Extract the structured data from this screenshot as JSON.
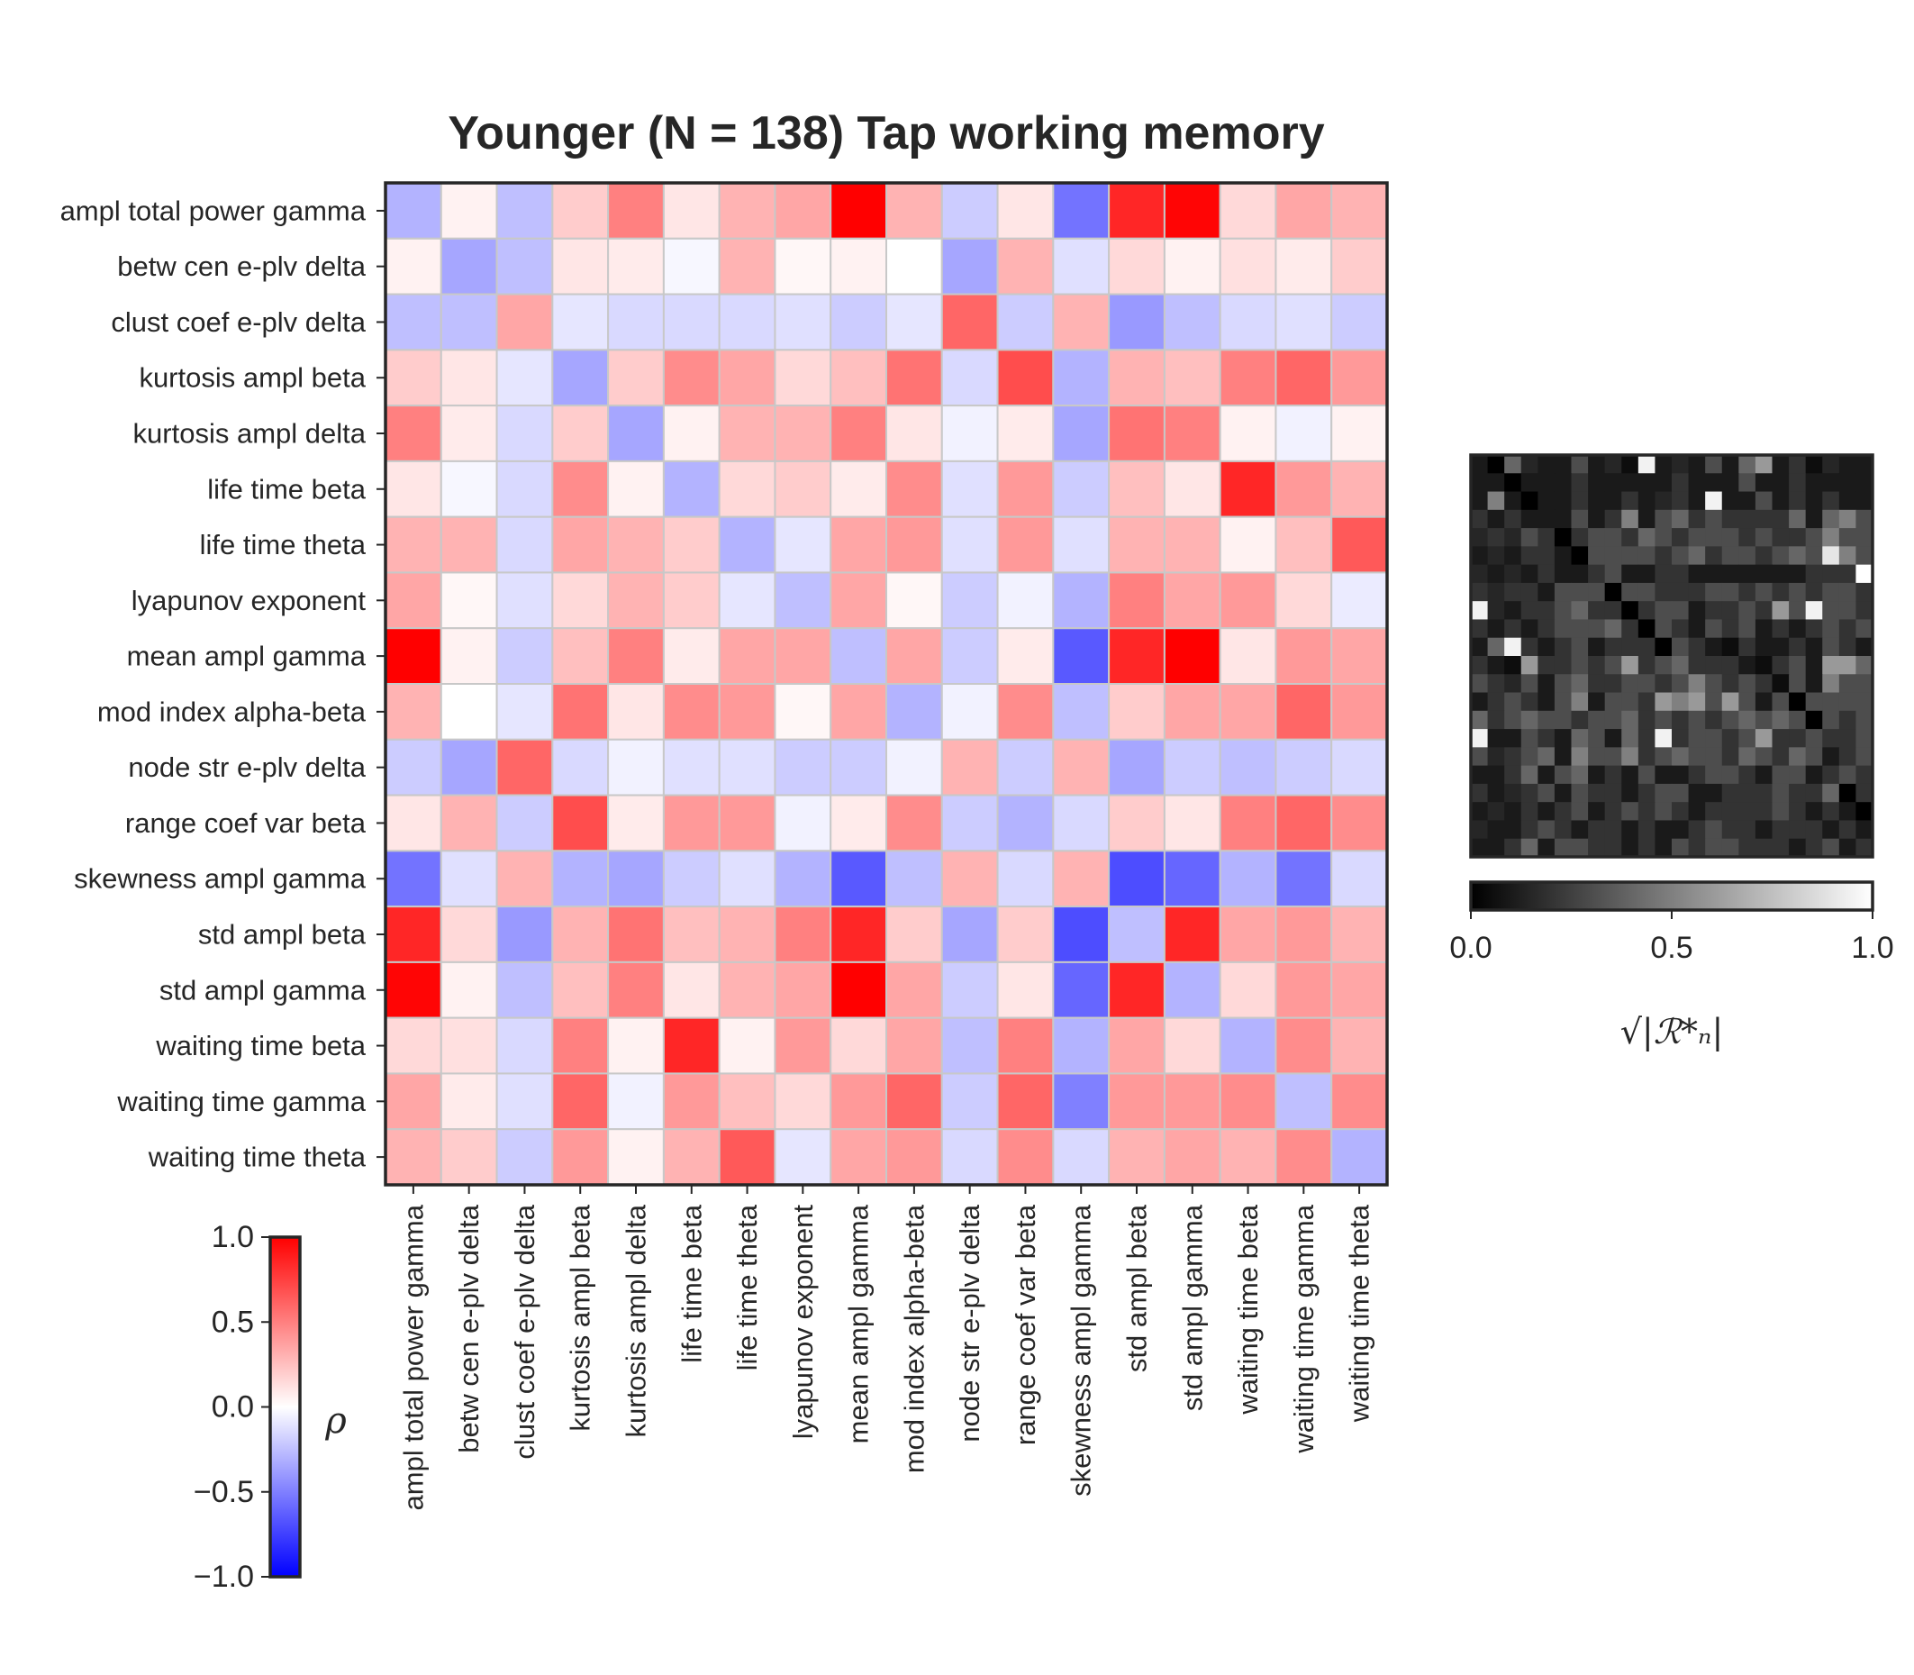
{
  "chart_data": [
    {
      "type": "heatmap",
      "title": "Younger (N = 138) Tap working memory",
      "labels": [
        "ampl total power gamma",
        "betw cen e-plv delta",
        "clust coef e-plv delta",
        "kurtosis ampl beta",
        "kurtosis ampl delta",
        "life time beta",
        "life time theta",
        "lyapunov exponent",
        "mean ampl gamma",
        "mod index alpha-beta",
        "node str e-plv delta",
        "range coef var beta",
        "skewness ampl gamma",
        "std ampl beta",
        "std ampl gamma",
        "waiting time beta",
        "waiting time gamma",
        "waiting time theta"
      ],
      "values": [
        [
          -0.3,
          0.05,
          -0.25,
          0.2,
          0.5,
          0.1,
          0.3,
          0.35,
          1.0,
          0.3,
          -0.2,
          0.1,
          -0.55,
          0.85,
          0.98,
          0.15,
          0.35,
          0.3
        ],
        [
          0.05,
          -0.35,
          -0.25,
          0.1,
          0.08,
          -0.03,
          0.3,
          0.03,
          0.05,
          0.0,
          -0.35,
          0.3,
          -0.12,
          0.15,
          0.05,
          0.12,
          0.08,
          0.2
        ],
        [
          -0.25,
          -0.25,
          0.35,
          -0.1,
          -0.15,
          -0.15,
          -0.15,
          -0.12,
          -0.2,
          -0.1,
          0.6,
          -0.2,
          0.3,
          -0.4,
          -0.25,
          -0.15,
          -0.12,
          -0.2
        ],
        [
          0.2,
          0.1,
          -0.1,
          -0.35,
          0.2,
          0.45,
          0.35,
          0.15,
          0.25,
          0.55,
          -0.15,
          0.7,
          -0.3,
          0.3,
          0.25,
          0.5,
          0.6,
          0.4
        ],
        [
          0.5,
          0.08,
          -0.15,
          0.2,
          -0.35,
          0.05,
          0.3,
          0.3,
          0.5,
          0.1,
          -0.05,
          0.08,
          -0.35,
          0.55,
          0.5,
          0.05,
          -0.05,
          0.05
        ],
        [
          0.1,
          -0.03,
          -0.15,
          0.45,
          0.05,
          -0.3,
          0.15,
          0.2,
          0.08,
          0.45,
          -0.12,
          0.4,
          -0.2,
          0.25,
          0.1,
          0.85,
          0.4,
          0.3
        ],
        [
          0.3,
          0.3,
          -0.15,
          0.35,
          0.3,
          0.2,
          -0.3,
          -0.1,
          0.35,
          0.4,
          -0.12,
          0.4,
          -0.12,
          0.3,
          0.3,
          0.05,
          0.25,
          0.65
        ],
        [
          0.35,
          0.03,
          -0.12,
          0.15,
          0.3,
          0.2,
          -0.1,
          -0.25,
          0.35,
          0.03,
          -0.2,
          -0.05,
          -0.3,
          0.5,
          0.35,
          0.4,
          0.15,
          -0.08
        ],
        [
          1.0,
          0.05,
          -0.2,
          0.25,
          0.5,
          0.08,
          0.35,
          0.35,
          -0.25,
          0.35,
          -0.2,
          0.08,
          -0.65,
          0.85,
          1.0,
          0.1,
          0.4,
          0.35
        ],
        [
          0.3,
          0.0,
          -0.1,
          0.55,
          0.1,
          0.45,
          0.4,
          0.03,
          0.35,
          -0.3,
          -0.05,
          0.45,
          -0.25,
          0.2,
          0.35,
          0.35,
          0.6,
          0.4
        ],
        [
          -0.2,
          -0.35,
          0.6,
          -0.15,
          -0.05,
          -0.12,
          -0.12,
          -0.2,
          -0.2,
          -0.05,
          0.3,
          -0.2,
          0.3,
          -0.35,
          -0.2,
          -0.25,
          -0.2,
          -0.15
        ],
        [
          0.1,
          0.3,
          -0.2,
          0.7,
          0.08,
          0.4,
          0.4,
          -0.05,
          0.08,
          0.45,
          -0.2,
          -0.3,
          -0.15,
          0.2,
          0.1,
          0.5,
          0.6,
          0.45
        ],
        [
          -0.55,
          -0.12,
          0.3,
          -0.3,
          -0.35,
          -0.2,
          -0.12,
          -0.3,
          -0.65,
          -0.25,
          0.3,
          -0.15,
          0.3,
          -0.7,
          -0.6,
          -0.3,
          -0.55,
          -0.15
        ],
        [
          0.85,
          0.15,
          -0.4,
          0.3,
          0.55,
          0.25,
          0.3,
          0.5,
          0.85,
          0.2,
          -0.35,
          0.2,
          -0.7,
          -0.25,
          0.85,
          0.35,
          0.4,
          0.3
        ],
        [
          0.98,
          0.05,
          -0.25,
          0.25,
          0.5,
          0.1,
          0.3,
          0.35,
          1.0,
          0.35,
          -0.2,
          0.1,
          -0.6,
          0.85,
          -0.3,
          0.15,
          0.4,
          0.35
        ],
        [
          0.15,
          0.12,
          -0.15,
          0.5,
          0.05,
          0.85,
          0.05,
          0.4,
          0.15,
          0.35,
          -0.25,
          0.5,
          -0.3,
          0.35,
          0.15,
          -0.3,
          0.45,
          0.3
        ],
        [
          0.35,
          0.08,
          -0.12,
          0.6,
          -0.05,
          0.4,
          0.25,
          0.15,
          0.4,
          0.6,
          -0.2,
          0.6,
          -0.5,
          0.4,
          0.4,
          0.45,
          -0.25,
          0.45
        ],
        [
          0.3,
          0.2,
          -0.2,
          0.4,
          0.05,
          0.3,
          0.65,
          -0.1,
          0.35,
          0.4,
          -0.15,
          0.45,
          -0.15,
          0.3,
          0.35,
          0.3,
          0.45,
          -0.3
        ]
      ],
      "colorbar": {
        "label": "ρ",
        "ticks": [
          "1.0",
          "0.5",
          "0.0",
          "−0.5",
          "−1.0"
        ],
        "range": [
          -1,
          1
        ],
        "colormap": "bwr"
      }
    },
    {
      "type": "heatmap",
      "values": [
        [
          0.1,
          0.0,
          0.4,
          0.15,
          0.1,
          0.1,
          0.3,
          0.1,
          0.15,
          0.05,
          0.95,
          0.1,
          0.15,
          0.1,
          0.3,
          0.1,
          0.4,
          0.6,
          0.1,
          0.2,
          0.05,
          0.15,
          0.1,
          0.1
        ],
        [
          0.1,
          0.1,
          0.0,
          0.1,
          0.1,
          0.1,
          0.2,
          0.1,
          0.1,
          0.1,
          0.1,
          0.1,
          0.2,
          0.1,
          0.1,
          0.1,
          0.3,
          0.1,
          0.1,
          0.2,
          0.1,
          0.1,
          0.1,
          0.1
        ],
        [
          0.1,
          0.5,
          0.1,
          0.0,
          0.1,
          0.1,
          0.2,
          0.1,
          0.1,
          0.2,
          0.1,
          0.15,
          0.2,
          0.1,
          0.95,
          0.1,
          0.1,
          0.3,
          0.1,
          0.2,
          0.1,
          0.2,
          0.1,
          0.1
        ],
        [
          0.2,
          0.1,
          0.2,
          0.1,
          0.1,
          0.1,
          0.3,
          0.1,
          0.2,
          0.5,
          0.1,
          0.3,
          0.4,
          0.2,
          0.3,
          0.2,
          0.2,
          0.2,
          0.2,
          0.4,
          0.1,
          0.4,
          0.5,
          0.3
        ],
        [
          0.15,
          0.2,
          0.15,
          0.3,
          0.2,
          0.0,
          0.2,
          0.3,
          0.3,
          0.2,
          0.4,
          0.3,
          0.2,
          0.3,
          0.3,
          0.3,
          0.2,
          0.3,
          0.2,
          0.2,
          0.3,
          0.5,
          0.3,
          0.3
        ],
        [
          0.1,
          0.15,
          0.1,
          0.2,
          0.2,
          0.1,
          0.0,
          0.3,
          0.3,
          0.3,
          0.3,
          0.2,
          0.3,
          0.4,
          0.2,
          0.3,
          0.3,
          0.2,
          0.3,
          0.4,
          0.3,
          0.9,
          0.5,
          0.3
        ],
        [
          0.15,
          0.1,
          0.15,
          0.1,
          0.2,
          0.1,
          0.1,
          0.2,
          0.3,
          0.1,
          0.1,
          0.2,
          0.2,
          0.1,
          0.1,
          0.1,
          0.1,
          0.1,
          0.1,
          0.1,
          0.2,
          0.2,
          0.2,
          1.0
        ],
        [
          0.2,
          0.15,
          0.2,
          0.2,
          0.1,
          0.3,
          0.3,
          0.3,
          0.0,
          0.3,
          0.3,
          0.2,
          0.2,
          0.2,
          0.3,
          0.3,
          0.2,
          0.3,
          0.2,
          0.3,
          0.2,
          0.3,
          0.3,
          0.2
        ],
        [
          0.95,
          0.15,
          0.1,
          0.2,
          0.2,
          0.3,
          0.4,
          0.2,
          0.2,
          0.0,
          0.2,
          0.3,
          0.3,
          0.1,
          0.2,
          0.2,
          0.3,
          0.2,
          0.6,
          0.3,
          0.95,
          0.3,
          0.3,
          0.2
        ],
        [
          0.2,
          0.1,
          0.2,
          0.1,
          0.2,
          0.3,
          0.3,
          0.3,
          0.4,
          0.2,
          0.0,
          0.3,
          0.2,
          0.1,
          0.3,
          0.2,
          0.3,
          0.1,
          0.2,
          0.1,
          0.2,
          0.3,
          0.2,
          0.3
        ],
        [
          0.1,
          0.4,
          0.95,
          0.2,
          0.1,
          0.2,
          0.3,
          0.1,
          0.2,
          0.2,
          0.2,
          0.0,
          0.3,
          0.2,
          0.1,
          0.05,
          0.2,
          0.1,
          0.1,
          0.2,
          0.1,
          0.3,
          0.2,
          0.1
        ],
        [
          0.2,
          0.1,
          0.05,
          0.6,
          0.2,
          0.2,
          0.3,
          0.2,
          0.3,
          0.6,
          0.2,
          0.3,
          0.4,
          0.2,
          0.2,
          0.2,
          0.1,
          0.05,
          0.2,
          0.3,
          0.1,
          0.6,
          0.6,
          0.4
        ],
        [
          0.3,
          0.2,
          0.15,
          0.3,
          0.1,
          0.3,
          0.4,
          0.2,
          0.2,
          0.3,
          0.3,
          0.2,
          0.3,
          0.5,
          0.3,
          0.2,
          0.3,
          0.2,
          0.05,
          0.3,
          0.1,
          0.5,
          0.3,
          0.3
        ],
        [
          0.1,
          0.2,
          0.3,
          0.2,
          0.1,
          0.3,
          0.5,
          0.1,
          0.3,
          0.3,
          0.2,
          0.6,
          0.5,
          0.6,
          0.3,
          0.6,
          0.3,
          0.1,
          0.3,
          0.0,
          0.3,
          0.3,
          0.3,
          0.3
        ],
        [
          0.4,
          0.2,
          0.3,
          0.4,
          0.3,
          0.3,
          0.2,
          0.3,
          0.3,
          0.4,
          0.2,
          0.3,
          0.2,
          0.3,
          0.2,
          0.3,
          0.4,
          0.3,
          0.4,
          0.3,
          0.0,
          0.3,
          0.2,
          0.3
        ],
        [
          0.95,
          0.1,
          0.1,
          0.3,
          0.2,
          0.1,
          0.4,
          0.3,
          0.1,
          0.4,
          0.2,
          0.95,
          0.2,
          0.3,
          0.3,
          0.2,
          0.3,
          0.6,
          0.2,
          0.2,
          0.3,
          0.2,
          0.2,
          0.3
        ],
        [
          0.3,
          0.15,
          0.2,
          0.3,
          0.4,
          0.1,
          0.5,
          0.3,
          0.3,
          0.5,
          0.2,
          0.3,
          0.4,
          0.3,
          0.3,
          0.2,
          0.4,
          0.3,
          0.2,
          0.4,
          0.3,
          0.1,
          0.2,
          0.3
        ],
        [
          0.1,
          0.1,
          0.2,
          0.4,
          0.1,
          0.3,
          0.4,
          0.1,
          0.2,
          0.1,
          0.3,
          0.1,
          0.1,
          0.2,
          0.3,
          0.3,
          0.2,
          0.1,
          0.3,
          0.3,
          0.1,
          0.2,
          0.3,
          0.2
        ],
        [
          0.2,
          0.1,
          0.15,
          0.2,
          0.3,
          0.1,
          0.3,
          0.2,
          0.2,
          0.1,
          0.2,
          0.3,
          0.3,
          0.1,
          0.1,
          0.2,
          0.2,
          0.2,
          0.3,
          0.2,
          0.2,
          0.4,
          0.0,
          0.2
        ],
        [
          0.1,
          0.15,
          0.1,
          0.2,
          0.1,
          0.2,
          0.3,
          0.1,
          0.2,
          0.3,
          0.2,
          0.3,
          0.2,
          0.1,
          0.2,
          0.2,
          0.2,
          0.2,
          0.3,
          0.2,
          0.1,
          0.2,
          0.1,
          0.0
        ],
        [
          0.15,
          0.1,
          0.1,
          0.2,
          0.3,
          0.2,
          0.1,
          0.2,
          0.2,
          0.1,
          0.2,
          0.1,
          0.1,
          0.2,
          0.3,
          0.2,
          0.2,
          0.1,
          0.2,
          0.2,
          0.2,
          0.1,
          0.2,
          0.1
        ],
        [
          0.1,
          0.1,
          0.2,
          0.4,
          0.1,
          0.3,
          0.3,
          0.2,
          0.2,
          0.1,
          0.2,
          0.1,
          0.3,
          0.2,
          0.3,
          0.3,
          0.2,
          0.2,
          0.2,
          0.1,
          0.2,
          0.3,
          0.1,
          0.2
        ]
      ],
      "colorbar": {
        "label": "√|ℛ*ₙ|",
        "ticks": [
          "0.0",
          "0.5",
          "1.0"
        ],
        "range": [
          0,
          1
        ],
        "colormap": "gray"
      }
    }
  ]
}
